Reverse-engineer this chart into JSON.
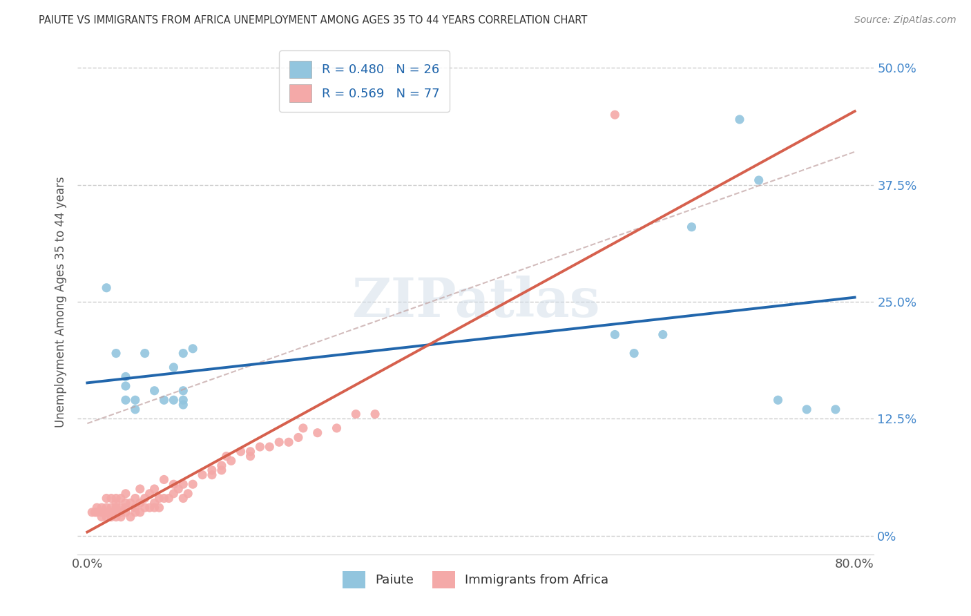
{
  "title": "PAIUTE VS IMMIGRANTS FROM AFRICA UNEMPLOYMENT AMONG AGES 35 TO 44 YEARS CORRELATION CHART",
  "source": "Source: ZipAtlas.com",
  "ylabel": "Unemployment Among Ages 35 to 44 years",
  "legend1_label": "R = 0.480   N = 26",
  "legend2_label": "R = 0.569   N = 77",
  "paiute_color": "#92c5de",
  "africa_color": "#f4a9a8",
  "paiute_line_color": "#2166ac",
  "africa_line_color": "#d6604d",
  "paiute_dashed_color": "#d6a0a0",
  "background_color": "#ffffff",
  "paiute_scatter_x": [
    0.02,
    0.03,
    0.04,
    0.04,
    0.04,
    0.05,
    0.05,
    0.06,
    0.07,
    0.08,
    0.09,
    0.09,
    0.1,
    0.1,
    0.1,
    0.1,
    0.11,
    0.55,
    0.57,
    0.6,
    0.63,
    0.68,
    0.7,
    0.72,
    0.75,
    0.78
  ],
  "paiute_scatter_y": [
    0.265,
    0.195,
    0.17,
    0.16,
    0.145,
    0.145,
    0.135,
    0.195,
    0.155,
    0.145,
    0.145,
    0.18,
    0.155,
    0.145,
    0.195,
    0.14,
    0.2,
    0.215,
    0.195,
    0.215,
    0.33,
    0.445,
    0.38,
    0.145,
    0.135,
    0.135
  ],
  "africa_scatter_x": [
    0.005,
    0.008,
    0.01,
    0.01,
    0.015,
    0.015,
    0.015,
    0.02,
    0.02,
    0.02,
    0.02,
    0.02,
    0.025,
    0.025,
    0.025,
    0.025,
    0.03,
    0.03,
    0.03,
    0.03,
    0.03,
    0.035,
    0.035,
    0.035,
    0.035,
    0.04,
    0.04,
    0.04,
    0.04,
    0.045,
    0.045,
    0.05,
    0.05,
    0.05,
    0.055,
    0.055,
    0.055,
    0.06,
    0.06,
    0.065,
    0.065,
    0.07,
    0.07,
    0.07,
    0.075,
    0.075,
    0.08,
    0.08,
    0.085,
    0.09,
    0.09,
    0.095,
    0.1,
    0.1,
    0.105,
    0.11,
    0.12,
    0.13,
    0.13,
    0.14,
    0.14,
    0.145,
    0.15,
    0.16,
    0.17,
    0.17,
    0.18,
    0.19,
    0.2,
    0.21,
    0.22,
    0.225,
    0.24,
    0.26,
    0.28,
    0.3,
    0.55
  ],
  "africa_scatter_y": [
    0.025,
    0.025,
    0.025,
    0.03,
    0.02,
    0.025,
    0.03,
    0.02,
    0.025,
    0.025,
    0.03,
    0.04,
    0.02,
    0.025,
    0.03,
    0.04,
    0.02,
    0.025,
    0.03,
    0.035,
    0.04,
    0.02,
    0.025,
    0.03,
    0.04,
    0.025,
    0.03,
    0.035,
    0.045,
    0.02,
    0.035,
    0.025,
    0.03,
    0.04,
    0.025,
    0.035,
    0.05,
    0.03,
    0.04,
    0.03,
    0.045,
    0.03,
    0.035,
    0.05,
    0.03,
    0.04,
    0.04,
    0.06,
    0.04,
    0.045,
    0.055,
    0.05,
    0.04,
    0.055,
    0.045,
    0.055,
    0.065,
    0.065,
    0.07,
    0.07,
    0.075,
    0.085,
    0.08,
    0.09,
    0.085,
    0.09,
    0.095,
    0.095,
    0.1,
    0.1,
    0.105,
    0.115,
    0.11,
    0.115,
    0.13,
    0.13,
    0.45
  ],
  "xlim": [
    -0.01,
    0.82
  ],
  "ylim": [
    -0.02,
    0.52
  ],
  "ytick_values": [
    0.0,
    0.125,
    0.25,
    0.375,
    0.5
  ],
  "ytick_labels": [
    "0%",
    "12.5%",
    "25.0%",
    "37.5%",
    "50.0%"
  ],
  "xtick_values": [
    0.0,
    0.8
  ],
  "xtick_labels": [
    "0.0%",
    "80.0%"
  ]
}
